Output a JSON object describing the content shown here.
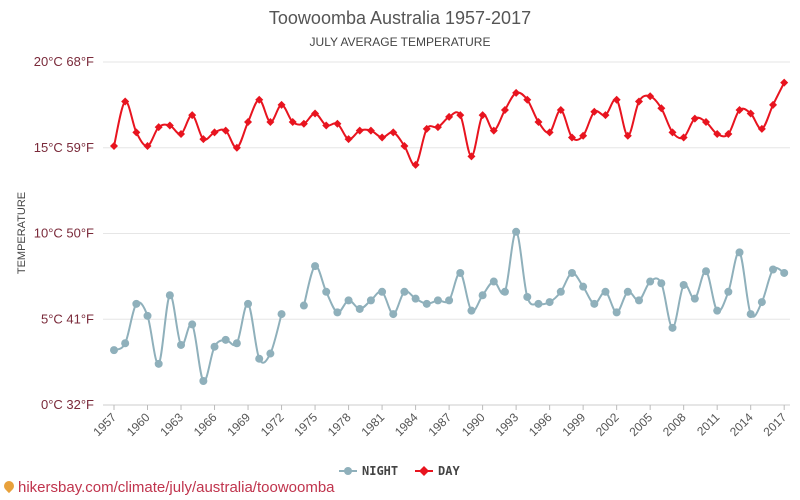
{
  "chart_data": {
    "type": "line",
    "title": "Toowoomba Australia 1957-2017",
    "subtitle": "JULY AVERAGE TEMPERATURE",
    "ylabel": "TEMPERATURE",
    "ylim": [
      0,
      20
    ],
    "yticks": [
      {
        "value": 0,
        "label": "0°C 32°F"
      },
      {
        "value": 5,
        "label": "5°C 41°F"
      },
      {
        "value": 10,
        "label": "10°C 50°F"
      },
      {
        "value": 15,
        "label": "15°C 59°F"
      },
      {
        "value": 20,
        "label": "20°C 68°F"
      }
    ],
    "x": [
      1957,
      1958,
      1959,
      1960,
      1961,
      1962,
      1963,
      1964,
      1965,
      1966,
      1967,
      1968,
      1969,
      1970,
      1971,
      1972,
      1973,
      1974,
      1975,
      1976,
      1977,
      1978,
      1979,
      1980,
      1981,
      1982,
      1983,
      1984,
      1985,
      1986,
      1987,
      1988,
      1989,
      1990,
      1991,
      1992,
      1993,
      1994,
      1995,
      1996,
      1997,
      1998,
      1999,
      2000,
      2001,
      2002,
      2003,
      2004,
      2005,
      2006,
      2007,
      2008,
      2009,
      2010,
      2011,
      2012,
      2013,
      2014,
      2015,
      2016,
      2017
    ],
    "xticks": [
      1957,
      1960,
      1963,
      1966,
      1969,
      1972,
      1975,
      1978,
      1981,
      1984,
      1987,
      1990,
      1993,
      1996,
      1999,
      2002,
      2005,
      2008,
      2011,
      2014,
      2017
    ],
    "grid": true,
    "legend_position": "bottom",
    "series": [
      {
        "name": "NIGHT",
        "color": "#8fb0bb",
        "values": [
          3.2,
          3.6,
          5.9,
          5.2,
          2.4,
          6.4,
          3.5,
          4.7,
          1.4,
          3.4,
          3.8,
          3.6,
          5.9,
          2.7,
          3.0,
          5.3,
          null,
          5.8,
          8.1,
          6.6,
          5.4,
          6.1,
          5.6,
          6.1,
          6.6,
          5.3,
          6.6,
          6.2,
          5.9,
          6.1,
          6.1,
          7.7,
          5.5,
          6.4,
          7.2,
          6.6,
          10.1,
          6.3,
          5.9,
          6.0,
          6.6,
          7.7,
          6.9,
          5.9,
          6.6,
          5.4,
          6.6,
          6.1,
          7.2,
          7.1,
          4.5,
          7.0,
          6.2,
          7.8,
          5.5,
          6.6,
          8.9,
          5.3,
          6.0,
          7.9,
          7.7
        ]
      },
      {
        "name": "DAY",
        "color": "#e8141f",
        "values": [
          15.1,
          17.7,
          15.9,
          15.1,
          16.2,
          16.3,
          15.8,
          16.9,
          15.5,
          15.9,
          16.0,
          15.0,
          16.5,
          17.8,
          16.5,
          17.5,
          16.5,
          16.4,
          17.0,
          16.3,
          16.4,
          15.5,
          16.0,
          16.0,
          15.6,
          15.9,
          15.1,
          14.0,
          16.1,
          16.2,
          16.8,
          16.9,
          14.5,
          16.9,
          16.0,
          17.2,
          18.2,
          17.8,
          16.5,
          15.9,
          17.2,
          15.6,
          15.7,
          17.1,
          16.9,
          17.8,
          15.7,
          17.7,
          18.0,
          17.3,
          15.9,
          15.6,
          16.7,
          16.5,
          15.8,
          15.8,
          17.2,
          17.0,
          16.1,
          17.5,
          18.8
        ]
      }
    ]
  },
  "legend": {
    "items": [
      {
        "label": "NIGHT",
        "color": "#8fb0bb"
      },
      {
        "label": "DAY",
        "color": "#e8141f"
      }
    ]
  },
  "watermark": {
    "text": "hikersbay.com/climate/july/australia/toowoomba",
    "icon": "location-pin-icon"
  }
}
